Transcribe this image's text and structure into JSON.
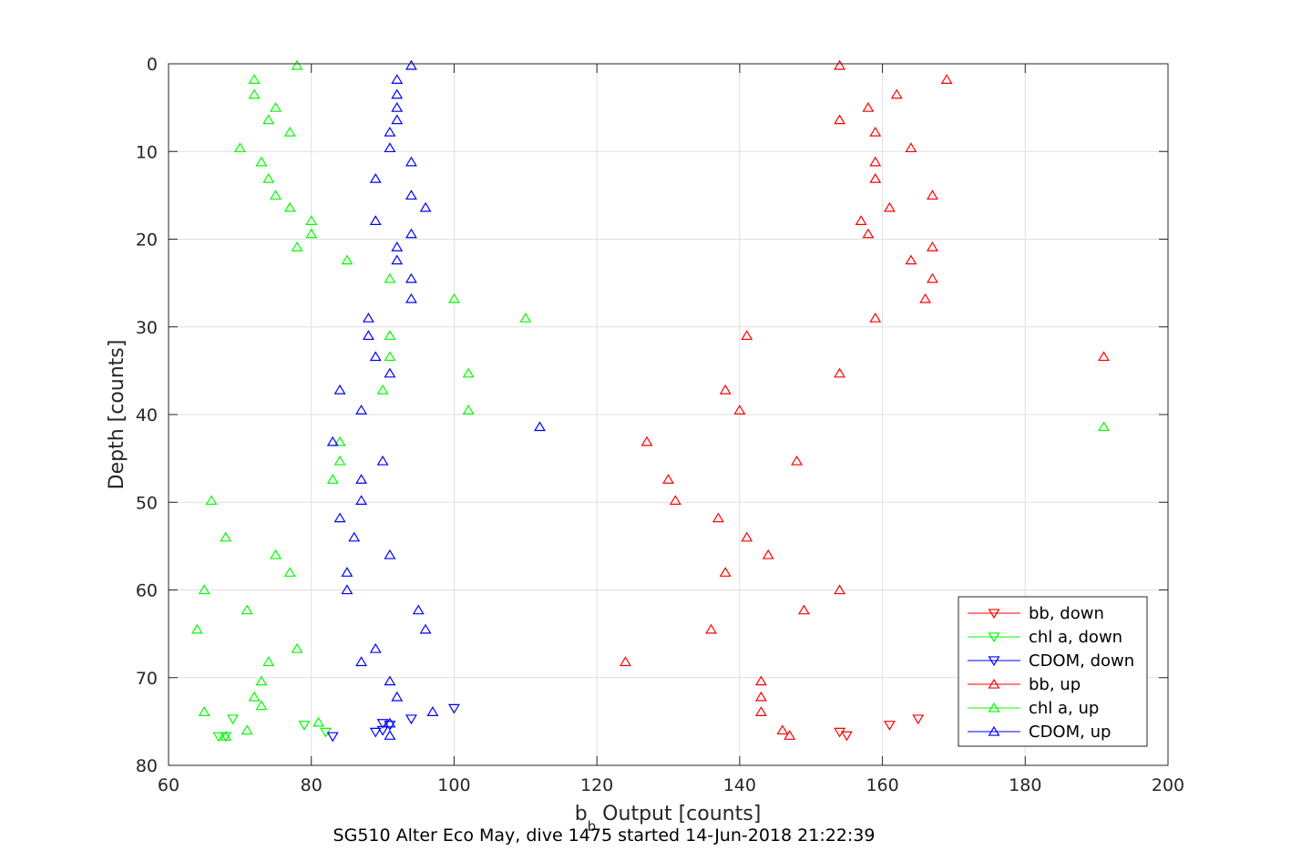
{
  "chart_data": {
    "type": "scatter",
    "title": "",
    "xlabel_main": "b",
    "xlabel_sub": "b",
    "xlabel_rest": " Output [counts]",
    "ylabel": "Depth [counts]",
    "caption": "SG510 Alter Eco May, dive 1475 started 14-Jun-2018 21:22:39",
    "xlim": [
      60,
      200
    ],
    "ylim": [
      0,
      80
    ],
    "y_reversed": true,
    "grid": true,
    "legend_position": "bottom-right",
    "xticks": [
      "60",
      "80",
      "100",
      "120",
      "140",
      "160",
      "180",
      "200"
    ],
    "yticks": [
      "0",
      "10",
      "20",
      "30",
      "40",
      "50",
      "60",
      "70",
      "80"
    ],
    "series": [
      {
        "name": "bb, down",
        "color": "#ff0000",
        "marker": "triangle-down",
        "points": [
          [
            165,
            74.7
          ],
          [
            161,
            75.4
          ],
          [
            154,
            76.2
          ],
          [
            155,
            76.6
          ]
        ]
      },
      {
        "name": "chl a, down",
        "color": "#00ff00",
        "marker": "triangle-down",
        "points": [
          [
            69,
            74.7
          ],
          [
            79,
            75.4
          ],
          [
            82,
            76.2
          ],
          [
            67,
            76.7
          ],
          [
            68,
            76.7
          ]
        ]
      },
      {
        "name": "CDOM, down",
        "color": "#0000ff",
        "marker": "triangle-down",
        "points": [
          [
            100,
            73.5
          ],
          [
            94,
            74.7
          ],
          [
            90,
            75.2
          ],
          [
            91,
            75.4
          ],
          [
            90,
            76.0
          ],
          [
            89,
            76.2
          ],
          [
            83,
            76.7
          ]
        ]
      },
      {
        "name": "bb, up",
        "color": "#ff0000",
        "marker": "triangle-up",
        "points": [
          [
            154,
            0.2
          ],
          [
            169,
            1.8
          ],
          [
            162,
            3.5
          ],
          [
            158,
            5.0
          ],
          [
            154,
            6.4
          ],
          [
            159,
            7.8
          ],
          [
            164,
            9.6
          ],
          [
            159,
            11.2
          ],
          [
            159,
            13.1
          ],
          [
            167,
            15.0
          ],
          [
            161,
            16.4
          ],
          [
            157,
            17.9
          ],
          [
            158,
            19.4
          ],
          [
            167,
            20.9
          ],
          [
            164,
            22.4
          ],
          [
            167,
            24.5
          ],
          [
            166,
            26.8
          ],
          [
            159,
            29.0
          ],
          [
            141,
            31.0
          ],
          [
            191,
            33.4
          ],
          [
            154,
            35.3
          ],
          [
            138,
            37.2
          ],
          [
            140,
            39.5
          ],
          [
            127,
            43.1
          ],
          [
            148,
            45.3
          ],
          [
            130,
            47.4
          ],
          [
            131,
            49.8
          ],
          [
            137,
            51.8
          ],
          [
            141,
            54.0
          ],
          [
            144,
            56.0
          ],
          [
            138,
            58.0
          ],
          [
            154,
            60.0
          ],
          [
            149,
            62.3
          ],
          [
            136,
            64.5
          ],
          [
            124,
            68.2
          ],
          [
            143,
            70.4
          ],
          [
            143,
            72.2
          ],
          [
            143,
            73.9
          ],
          [
            146,
            76.0
          ],
          [
            147,
            76.6
          ]
        ]
      },
      {
        "name": "chl a, up",
        "color": "#00ff00",
        "marker": "triangle-up",
        "points": [
          [
            78,
            0.2
          ],
          [
            72,
            1.8
          ],
          [
            72,
            3.5
          ],
          [
            75,
            5.0
          ],
          [
            74,
            6.4
          ],
          [
            77,
            7.8
          ],
          [
            70,
            9.6
          ],
          [
            73,
            11.2
          ],
          [
            74,
            13.1
          ],
          [
            75,
            15.0
          ],
          [
            77,
            16.4
          ],
          [
            80,
            17.9
          ],
          [
            80,
            19.4
          ],
          [
            78,
            20.9
          ],
          [
            85,
            22.4
          ],
          [
            91,
            24.5
          ],
          [
            100,
            26.8
          ],
          [
            110,
            29.0
          ],
          [
            91,
            31.0
          ],
          [
            91,
            33.4
          ],
          [
            102,
            35.3
          ],
          [
            90,
            37.2
          ],
          [
            102,
            39.5
          ],
          [
            191,
            41.4
          ],
          [
            84,
            43.1
          ],
          [
            84,
            45.3
          ],
          [
            83,
            47.4
          ],
          [
            66,
            49.8
          ],
          [
            68,
            54.0
          ],
          [
            75,
            56.0
          ],
          [
            77,
            58.0
          ],
          [
            65,
            60.0
          ],
          [
            71,
            62.3
          ],
          [
            64,
            64.5
          ],
          [
            78,
            66.7
          ],
          [
            74,
            68.2
          ],
          [
            73,
            70.4
          ],
          [
            72,
            72.2
          ],
          [
            73,
            73.2
          ],
          [
            65,
            73.9
          ],
          [
            81,
            75.1
          ],
          [
            71,
            76.0
          ],
          [
            68,
            76.7
          ]
        ]
      },
      {
        "name": "CDOM, up",
        "color": "#0000ff",
        "marker": "triangle-up",
        "points": [
          [
            94,
            0.2
          ],
          [
            92,
            1.8
          ],
          [
            92,
            3.5
          ],
          [
            92,
            5.0
          ],
          [
            92,
            6.4
          ],
          [
            91,
            7.8
          ],
          [
            91,
            9.6
          ],
          [
            94,
            11.2
          ],
          [
            89,
            13.1
          ],
          [
            94,
            15.0
          ],
          [
            96,
            16.4
          ],
          [
            89,
            17.9
          ],
          [
            94,
            19.4
          ],
          [
            92,
            20.9
          ],
          [
            92,
            22.4
          ],
          [
            94,
            24.5
          ],
          [
            94,
            26.8
          ],
          [
            88,
            29.0
          ],
          [
            88,
            31.0
          ],
          [
            89,
            33.4
          ],
          [
            91,
            35.3
          ],
          [
            84,
            37.2
          ],
          [
            87,
            39.5
          ],
          [
            112,
            41.4
          ],
          [
            83,
            43.1
          ],
          [
            90,
            45.3
          ],
          [
            87,
            47.4
          ],
          [
            87,
            49.8
          ],
          [
            84,
            51.8
          ],
          [
            86,
            54.0
          ],
          [
            91,
            56.0
          ],
          [
            85,
            58.0
          ],
          [
            85,
            60.0
          ],
          [
            95,
            62.3
          ],
          [
            96,
            64.5
          ],
          [
            89,
            66.7
          ],
          [
            87,
            68.2
          ],
          [
            91,
            70.4
          ],
          [
            92,
            72.2
          ],
          [
            97,
            73.9
          ],
          [
            91,
            75.2
          ],
          [
            91,
            76.6
          ]
        ]
      }
    ]
  }
}
